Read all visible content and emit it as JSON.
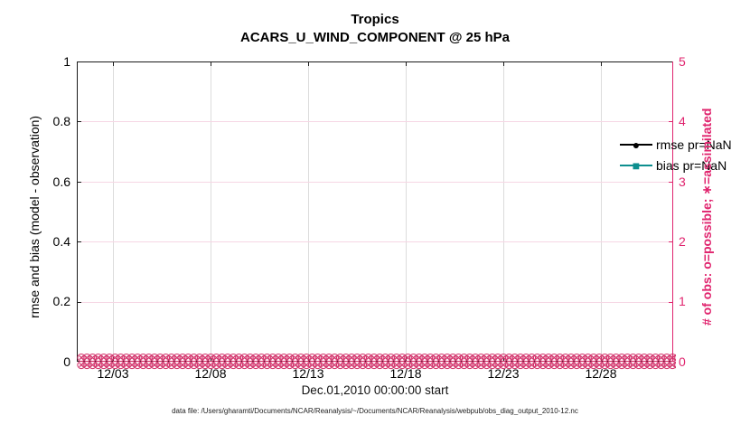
{
  "figure": {
    "title_line1": "Tropics",
    "title_line2": "ACARS_U_WIND_COMPONENT @ 25 hPa",
    "xlabel": "Dec.01,2010 00:00:00 start",
    "footer": "data file: /Users/gharamti/Documents/NCAR/Reanalysis/~/Documents/NCAR/Reanalysis/webpub/obs_diag_output_2010-12.nc"
  },
  "left_axis": {
    "label": "rmse and bias (model - observation)",
    "ticks": [
      "1",
      "0.8",
      "0.6",
      "0.4",
      "0.2",
      "0"
    ],
    "color": "#000000"
  },
  "right_axis": {
    "label": "# of obs: o=possible; ∗=assimilated",
    "ticks": [
      "5",
      "4",
      "3",
      "2",
      "1",
      "0"
    ],
    "color": "#e0246e"
  },
  "x_axis": {
    "ticks": [
      "12/03",
      "12/08",
      "12/13",
      "12/18",
      "12/23",
      "12/28"
    ]
  },
  "legend": [
    {
      "label": "rmse pr=NaN",
      "color": "#000000",
      "marker": "circle"
    },
    {
      "label": "bias pr=NaN",
      "color": "#0d8f8f",
      "marker": "square"
    }
  ],
  "obs_band": {
    "glyph": "⊗",
    "rows": 2,
    "per_row": 130,
    "color": "#d2316a",
    "meaning": "o=possible and ∗=assimilated observation-count markers, all at 0"
  },
  "chart_data": {
    "type": "line",
    "title": "Tropics",
    "subtitle": "ACARS_U_WIND_COMPONENT @ 25 hPa",
    "xlabel": "Dec.01,2010 00:00:00 start",
    "ylabel_left": "rmse and bias (model - observation)",
    "ylabel_right": "# of obs: o=possible; ∗=assimilated",
    "ylim_left": [
      0,
      1
    ],
    "ylim_right": [
      0,
      5
    ],
    "x_range": [
      "12/01",
      "12/31"
    ],
    "x_ticks": [
      "12/03",
      "12/08",
      "12/13",
      "12/18",
      "12/23",
      "12/28"
    ],
    "grid": true,
    "legend_position": "top-right inside, no box",
    "series": [
      {
        "name": "rmse pr=NaN",
        "axis": "left",
        "color": "#000000",
        "marker": "filled-circle",
        "values": "NaN (nothing plotted)"
      },
      {
        "name": "bias pr=NaN",
        "axis": "left",
        "color": "#0d8f8f",
        "marker": "filled-square",
        "values": "NaN (nothing plotted)"
      },
      {
        "name": "# of obs possible (o)",
        "axis": "right",
        "color": "#d2316a",
        "marker": "o",
        "value_constant": 0,
        "note": "dense daily markers along y=0 for entire month"
      },
      {
        "name": "# of obs assimilated (∗)",
        "axis": "right",
        "color": "#d2316a",
        "marker": "∗",
        "value_constant": 0,
        "note": "dense daily markers along y=0 for entire month"
      }
    ]
  }
}
